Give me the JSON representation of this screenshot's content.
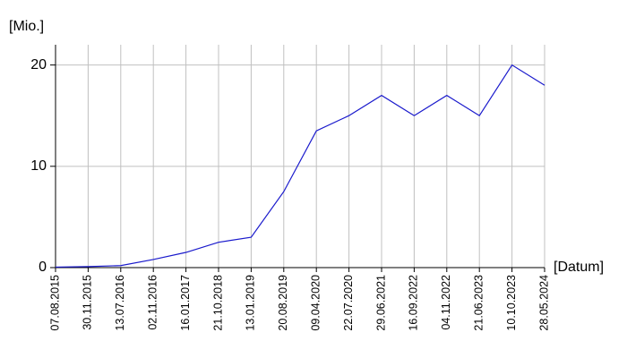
{
  "chart_data": {
    "type": "line",
    "y_label": "[Mio.]",
    "x_label": "[Datum]",
    "categories": [
      "07.08.2015",
      "30.11.2015",
      "13.07.2016",
      "02.11.2016",
      "16.01.2017",
      "21.10.2018",
      "13.01.2019",
      "20.08.2019",
      "09.04.2020",
      "22.07.2020",
      "29.06.2021",
      "16.09.2022",
      "04.11.2022",
      "21.06.2023",
      "10.10.2023",
      "28.05.2024"
    ],
    "values": [
      0.05,
      0.1,
      0.2,
      0.8,
      1.5,
      2.5,
      3.0,
      7.5,
      13.5,
      15,
      17,
      15,
      17,
      15,
      20,
      18
    ],
    "color": "#1a1acc",
    "ylim": [
      0,
      22
    ],
    "yticks": [
      0,
      10,
      20
    ],
    "grid": true
  }
}
